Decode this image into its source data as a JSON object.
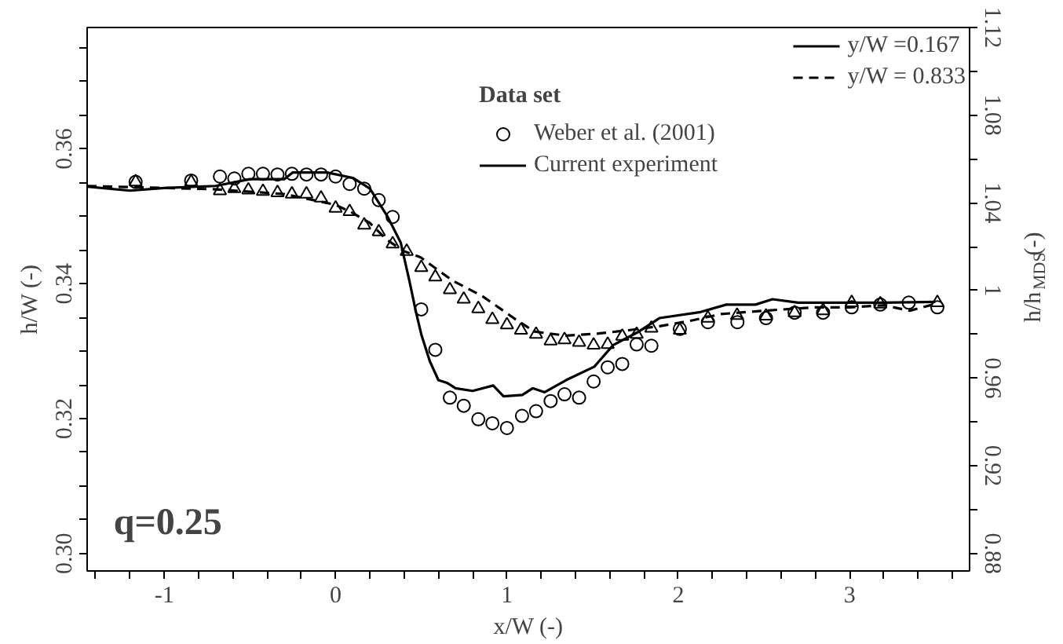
{
  "chart_data": {
    "type": "line",
    "xlabel": "x/W (-)",
    "ylabel": "h/W (-)",
    "y2label": "h/h$_{MDS}$(-)",
    "legend_title": "Data set",
    "annotations": [
      "y/W =0.167",
      "y/W = 0.833",
      "q=0.25"
    ],
    "xlim": [
      -1.45,
      3.7
    ],
    "ylim": [
      0.2974,
      0.378
    ],
    "y2lim": [
      0.872,
      1.12
    ],
    "xticks": [
      {
        "value": -1.4,
        "label": null
      },
      {
        "value": -1.2,
        "label": null
      },
      -1,
      {
        "value": -0.8,
        "label": null
      },
      {
        "value": -0.6,
        "label": null
      },
      {
        "value": -0.4,
        "label": null
      },
      {
        "value": -0.2,
        "label": null
      },
      0,
      {
        "value": 0.2,
        "label": null
      },
      {
        "value": 0.4,
        "label": null
      },
      {
        "value": 0.6,
        "label": null
      },
      {
        "value": 0.8,
        "label": null
      },
      1,
      {
        "value": 1.2,
        "label": null
      },
      {
        "value": 1.4,
        "label": null
      },
      {
        "value": 1.6,
        "label": null
      },
      {
        "value": 1.8,
        "label": null
      },
      2,
      {
        "value": 2.2,
        "label": null
      },
      {
        "value": 2.4,
        "label": null
      },
      {
        "value": 2.6,
        "label": null
      },
      {
        "value": 2.8,
        "label": null
      },
      3,
      {
        "value": 3.2,
        "label": null
      },
      {
        "value": 3.4,
        "label": null
      },
      {
        "value": 3.6,
        "label": null
      }
    ],
    "yticks": [
      {
        "value": 0.3,
        "label": "0.30"
      },
      {
        "value": 0.305,
        "label": null
      },
      {
        "value": 0.31,
        "label": null
      },
      {
        "value": 0.315,
        "label": null
      },
      {
        "value": 0.32,
        "label": "0.32"
      },
      {
        "value": 0.325,
        "label": null
      },
      {
        "value": 0.33,
        "label": null
      },
      {
        "value": 0.335,
        "label": null
      },
      {
        "value": 0.34,
        "label": "0.34"
      },
      {
        "value": 0.345,
        "label": null
      },
      {
        "value": 0.35,
        "label": null
      },
      {
        "value": 0.355,
        "label": null
      },
      {
        "value": 0.36,
        "label": "0.36"
      },
      {
        "value": 0.365,
        "label": null
      },
      {
        "value": 0.37,
        "label": null
      },
      {
        "value": 0.375,
        "label": null
      }
    ],
    "y2ticks": [
      0.88,
      {
        "value": 0.9,
        "label": null
      },
      0.92,
      {
        "value": 0.94,
        "label": null
      },
      0.96,
      {
        "value": 0.98,
        "label": null
      },
      1,
      {
        "value": 1.02,
        "label": null
      },
      1.04,
      {
        "value": 1.06,
        "label": null
      },
      1.08,
      {
        "value": 1.1,
        "label": null
      },
      1.12
    ],
    "grid": false,
    "legend": "top right",
    "series": [
      {
        "name": "Weber et al. (2001)",
        "type": "scatter",
        "marker": "circle",
        "color": "#000000",
        "x": [
          -1.167,
          -0.843,
          -0.675,
          -0.591,
          -0.509,
          -0.424,
          -0.339,
          -0.255,
          -0.17,
          -0.085,
          0.0,
          0.082,
          0.167,
          0.252,
          0.333,
          0.5,
          0.582,
          0.667,
          0.748,
          0.833,
          0.915,
          1.0,
          1.088,
          1.17,
          1.255,
          1.336,
          1.421,
          1.506,
          1.588,
          1.673,
          1.757,
          1.843,
          2.009,
          2.173,
          2.345,
          2.512,
          2.679,
          2.845,
          3.012,
          3.179,
          3.345,
          3.512
        ],
        "values": [
          0.3551,
          0.3553,
          0.3559,
          0.3556,
          0.3563,
          0.3563,
          0.3562,
          0.3563,
          0.3562,
          0.3562,
          0.3559,
          0.3548,
          0.3541,
          0.3524,
          0.3499,
          0.3362,
          0.3302,
          0.3231,
          0.3219,
          0.3199,
          0.3193,
          0.3186,
          0.3204,
          0.3211,
          0.3226,
          0.3236,
          0.3231,
          0.3255,
          0.3276,
          0.3281,
          0.331,
          0.3308,
          0.3333,
          0.3343,
          0.3343,
          0.3349,
          0.3357,
          0.3357,
          0.3365,
          0.3369,
          0.3372,
          0.3365
        ]
      },
      {
        "type": "scatter",
        "marker": "triangle",
        "color": "#000000",
        "x": [
          -1.167,
          -0.843,
          -0.675,
          -0.591,
          -0.509,
          -0.424,
          -0.339,
          -0.255,
          -0.17,
          -0.085,
          0.0,
          0.082,
          0.167,
          0.252,
          0.333,
          0.415,
          0.5,
          0.582,
          0.667,
          0.748,
          0.833,
          0.915,
          1.0,
          1.082,
          1.17,
          1.255,
          1.336,
          1.421,
          1.506,
          1.588,
          1.673,
          1.757,
          1.843,
          2.009,
          2.173,
          2.343,
          2.512,
          2.679,
          2.845,
          3.012,
          3.179,
          3.512
        ],
        "values": [
          0.3551,
          0.3551,
          0.3538,
          0.3541,
          0.3539,
          0.3537,
          0.3535,
          0.3533,
          0.3533,
          0.3527,
          0.3512,
          0.3507,
          0.3487,
          0.3477,
          0.3459,
          0.3448,
          0.3424,
          0.341,
          0.3391,
          0.3377,
          0.3363,
          0.3347,
          0.3339,
          0.3331,
          0.3325,
          0.3315,
          0.3317,
          0.3313,
          0.3309,
          0.331,
          0.3322,
          0.3325,
          0.3334,
          0.3331,
          0.3349,
          0.3353,
          0.3352,
          0.3357,
          0.336,
          0.3372,
          0.337,
          0.3372
        ]
      },
      {
        "name": "Current experiment",
        "line_style": "solid",
        "color": "#000000",
        "x": [
          -1.45,
          -1.2,
          -1.0,
          -0.7,
          -0.5,
          -0.3,
          -0.25,
          -0.05,
          0.1,
          0.2,
          0.3,
          0.38,
          0.43,
          0.47,
          0.5,
          0.55,
          0.6,
          0.65,
          0.7,
          0.8,
          0.92,
          0.98,
          1.09,
          1.15,
          1.22,
          1.345,
          1.51,
          1.62,
          1.77,
          1.89,
          2.13,
          2.28,
          2.45,
          2.55,
          2.7,
          3.0,
          3.2,
          3.5
        ],
        "values": [
          0.3544,
          0.3538,
          0.3542,
          0.3545,
          0.3555,
          0.3555,
          0.3565,
          0.3565,
          0.3557,
          0.3541,
          0.3501,
          0.3461,
          0.3405,
          0.3357,
          0.3325,
          0.3285,
          0.3257,
          0.3253,
          0.3245,
          0.3241,
          0.3249,
          0.3233,
          0.3235,
          0.3245,
          0.3239,
          0.3257,
          0.3277,
          0.3309,
          0.3329,
          0.3349,
          0.3358,
          0.3369,
          0.3369,
          0.3377,
          0.3372,
          0.3372,
          0.3372,
          0.3373
        ]
      },
      {
        "line_style": "dashed",
        "color": "#000000",
        "x": [
          -1.45,
          -1.0,
          -0.7,
          -0.3,
          0.0,
          0.1,
          0.2,
          0.3,
          0.4,
          0.497,
          0.68,
          0.86,
          1.04,
          1.16,
          1.345,
          1.53,
          1.71,
          1.89,
          2.07,
          2.25,
          2.5,
          2.8,
          3.0,
          3.2,
          3.35,
          3.5
        ],
        "values": [
          0.3545,
          0.3542,
          0.354,
          0.3533,
          0.3517,
          0.3505,
          0.349,
          0.3465,
          0.3448,
          0.3439,
          0.3405,
          0.3381,
          0.3349,
          0.3329,
          0.3323,
          0.3326,
          0.3331,
          0.3337,
          0.3345,
          0.3355,
          0.336,
          0.3365,
          0.3365,
          0.3368,
          0.336,
          0.337
        ]
      }
    ]
  }
}
